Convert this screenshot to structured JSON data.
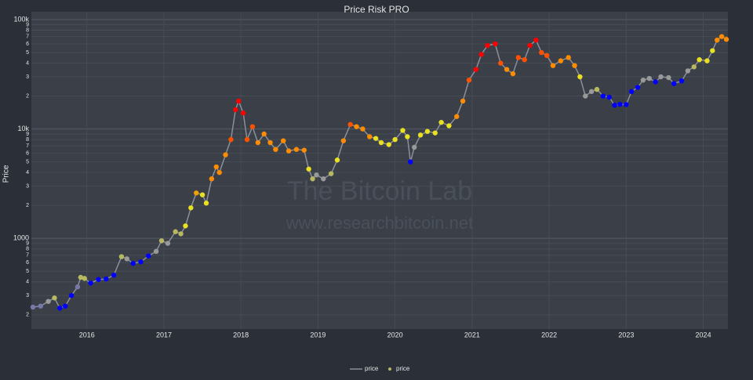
{
  "chart_data": {
    "type": "line",
    "title": "Price Risk PRO",
    "y_label": "Price",
    "annotations": [
      "The Bitcoin Lab",
      "www.researchbitcoin.net"
    ],
    "log_y": true,
    "grid": true,
    "legend": "bottom",
    "xlim": [
      2015.28,
      2024.32
    ],
    "xticks": [
      2016,
      2017,
      2018,
      2019,
      2020,
      2021,
      2022,
      2023,
      2024
    ],
    "ylim": [
      148,
      118000
    ],
    "yticks": [
      {
        "value": 200,
        "label": "2"
      },
      {
        "value": 300,
        "label": "3"
      },
      {
        "value": 400,
        "label": "4"
      },
      {
        "value": 500,
        "label": "5"
      },
      {
        "value": 600,
        "label": "6"
      },
      {
        "value": 700,
        "label": "7"
      },
      {
        "value": 800,
        "label": "8"
      },
      {
        "value": 900,
        "label": "9"
      },
      1000,
      {
        "value": 2000,
        "label": "2"
      },
      {
        "value": 3000,
        "label": "3"
      },
      {
        "value": 4000,
        "label": "4"
      },
      {
        "value": 5000,
        "label": "5"
      },
      {
        "value": 6000,
        "label": "6"
      },
      {
        "value": 7000,
        "label": "7"
      },
      {
        "value": 8000,
        "label": "8"
      },
      {
        "value": 9000,
        "label": "9"
      },
      {
        "value": 10000,
        "label": "10k"
      },
      {
        "value": 20000,
        "label": "2"
      },
      {
        "value": 30000,
        "label": "3"
      },
      {
        "value": 40000,
        "label": "4"
      },
      {
        "value": 50000,
        "label": "5"
      },
      {
        "value": 60000,
        "label": "6"
      },
      {
        "value": 70000,
        "label": "7"
      },
      {
        "value": 80000,
        "label": "8"
      },
      {
        "value": 90000,
        "label": "9"
      },
      {
        "value": 100000,
        "label": "100k"
      }
    ],
    "x": [
      2015.3,
      2015.4,
      2015.5,
      2015.58,
      2015.65,
      2015.72,
      2015.8,
      2015.88,
      2015.92,
      2015.97,
      2016.05,
      2016.15,
      2016.25,
      2016.35,
      2016.45,
      2016.52,
      2016.6,
      2016.7,
      2016.8,
      2016.9,
      2016.97,
      2017.05,
      2017.15,
      2017.22,
      2017.28,
      2017.35,
      2017.42,
      2017.5,
      2017.55,
      2017.62,
      2017.68,
      2017.72,
      2017.8,
      2017.87,
      2017.93,
      2017.97,
      2018.03,
      2018.08,
      2018.15,
      2018.22,
      2018.3,
      2018.38,
      2018.45,
      2018.55,
      2018.62,
      2018.72,
      2018.82,
      2018.88,
      2018.93,
      2018.98,
      2019.07,
      2019.17,
      2019.25,
      2019.33,
      2019.42,
      2019.5,
      2019.58,
      2019.67,
      2019.75,
      2019.82,
      2019.92,
      2020.0,
      2020.1,
      2020.16,
      2020.2,
      2020.25,
      2020.33,
      2020.42,
      2020.52,
      2020.6,
      2020.7,
      2020.8,
      2020.88,
      2020.96,
      2021.05,
      2021.12,
      2021.2,
      2021.3,
      2021.37,
      2021.45,
      2021.53,
      2021.6,
      2021.68,
      2021.75,
      2021.83,
      2021.9,
      2021.97,
      2022.05,
      2022.15,
      2022.25,
      2022.33,
      2022.4,
      2022.47,
      2022.55,
      2022.62,
      2022.7,
      2022.78,
      2022.85,
      2022.92,
      2023.0,
      2023.07,
      2023.15,
      2023.22,
      2023.3,
      2023.38,
      2023.45,
      2023.55,
      2023.62,
      2023.72,
      2023.8,
      2023.88,
      2023.95,
      2024.05,
      2024.12,
      2024.18,
      2024.24,
      2024.3
    ],
    "series": [
      {
        "name": "price",
        "color": "#8a8f99",
        "values": [
          235,
          240,
          265,
          285,
          230,
          240,
          300,
          360,
          440,
          430,
          390,
          420,
          425,
          460,
          680,
          650,
          590,
          610,
          690,
          760,
          950,
          900,
          1150,
          1100,
          1300,
          1900,
          2600,
          2500,
          2100,
          3500,
          4500,
          4000,
          5800,
          8000,
          15000,
          18000,
          14000,
          8000,
          10500,
          7500,
          9000,
          7500,
          6500,
          7800,
          6300,
          6500,
          6400,
          4300,
          3500,
          3800,
          3500,
          3900,
          5200,
          7800,
          11000,
          10500,
          10000,
          8500,
          8200,
          7500,
          7200,
          8000,
          9700,
          8500,
          5000,
          6800,
          8800,
          9500,
          9200,
          11500,
          10700,
          13000,
          18000,
          28000,
          35000,
          48000,
          58000,
          60000,
          40000,
          35000,
          32000,
          45000,
          43000,
          58000,
          65000,
          50000,
          47000,
          38000,
          42000,
          45000,
          38000,
          30000,
          20000,
          22000,
          23000,
          20000,
          19500,
          16500,
          16800,
          16700,
          22000,
          24000,
          28000,
          29000,
          27000,
          30000,
          29500,
          26000,
          27500,
          34000,
          37000,
          43000,
          42000,
          52000,
          65000,
          70000,
          66000
        ]
      },
      {
        "name": "price",
        "color": "#b8b860",
        "values": [
          235,
          240,
          265,
          285,
          230,
          240,
          300,
          360,
          440,
          430,
          390,
          420,
          425,
          460,
          680,
          650,
          590,
          610,
          690,
          760,
          950,
          900,
          1150,
          1100,
          1300,
          1900,
          2600,
          2500,
          2100,
          3500,
          4500,
          4000,
          5800,
          8000,
          15000,
          18000,
          14000,
          8000,
          10500,
          7500,
          9000,
          7500,
          6500,
          7800,
          6300,
          6500,
          6400,
          4300,
          3500,
          3800,
          3500,
          3900,
          5200,
          7800,
          11000,
          10500,
          10000,
          8500,
          8200,
          7500,
          7200,
          8000,
          9700,
          8500,
          5000,
          6800,
          8800,
          9500,
          9200,
          11500,
          10700,
          13000,
          18000,
          28000,
          35000,
          48000,
          58000,
          60000,
          40000,
          35000,
          32000,
          45000,
          43000,
          58000,
          65000,
          50000,
          47000,
          38000,
          42000,
          45000,
          38000,
          30000,
          20000,
          22000,
          23000,
          20000,
          19500,
          16500,
          16800,
          16700,
          22000,
          24000,
          28000,
          29000,
          27000,
          30000,
          29500,
          26000,
          27500,
          34000,
          37000,
          43000,
          42000,
          52000,
          65000,
          70000,
          66000
        ],
        "colors": [
          "#7777aa",
          "#7777aa",
          "#999999",
          "#b8b860",
          "#0000ff",
          "#0000ff",
          "#0000ff",
          "#7777aa",
          "#b8b860",
          "#b8b860",
          "#0000ff",
          "#0000ff",
          "#0000ff",
          "#0000ff",
          "#b8b860",
          "#999999",
          "#0000ff",
          "#0000ff",
          "#0000ff",
          "#999999",
          "#b8b860",
          "#999999",
          "#b8b860",
          "#b8b860",
          "#e8e020",
          "#e8e020",
          "#f0a000",
          "#e8e020",
          "#e8e020",
          "#ff8c00",
          "#ff8c00",
          "#ff8c00",
          "#ff8c00",
          "#ff5000",
          "#ff0000",
          "#ff0000",
          "#ff0000",
          "#ff5000",
          "#ff5000",
          "#ff8c00",
          "#ff8c00",
          "#ff8c00",
          "#ff8c00",
          "#ff8c00",
          "#ff8c00",
          "#ff8c00",
          "#ff8c00",
          "#e8e020",
          "#b8b860",
          "#999999",
          "#999999",
          "#b8b860",
          "#e8e020",
          "#ff8c00",
          "#ff5000",
          "#ff8c00",
          "#ff8c00",
          "#ff8c00",
          "#e8e020",
          "#e8e020",
          "#e8e020",
          "#e8e020",
          "#e8e020",
          "#e8e020",
          "#0000ff",
          "#999999",
          "#e8e020",
          "#e8e020",
          "#e8e020",
          "#e8e020",
          "#e8e020",
          "#ff8c00",
          "#ff8c00",
          "#ff5000",
          "#ff0000",
          "#ff0000",
          "#ff0000",
          "#ff0000",
          "#ff5000",
          "#ff8c00",
          "#ff8c00",
          "#ff5000",
          "#ff5000",
          "#ff0000",
          "#ff0000",
          "#ff5000",
          "#ff5000",
          "#ff8c00",
          "#ff8c00",
          "#ff8c00",
          "#ff8c00",
          "#e8e020",
          "#999999",
          "#999999",
          "#b8b860",
          "#0000ff",
          "#0000ff",
          "#0000ff",
          "#0000ff",
          "#0000ff",
          "#0000ff",
          "#0000ff",
          "#999999",
          "#999999",
          "#0000ff",
          "#999999",
          "#999999",
          "#0000ff",
          "#0000ff",
          "#999999",
          "#b8b860",
          "#e8e020",
          "#e8e020",
          "#e8e020",
          "#ff8c00",
          "#ff8c00",
          "#ff8c00"
        ]
      }
    ]
  }
}
